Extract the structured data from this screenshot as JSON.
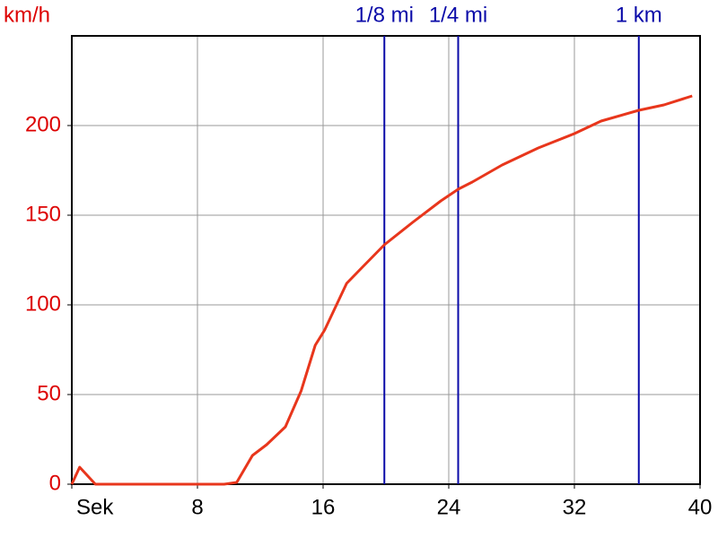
{
  "chart_data": {
    "type": "line",
    "y_label": "km/h",
    "xlim": [
      0,
      40
    ],
    "ylim": [
      0,
      250
    ],
    "xticks": [
      {
        "value": 0,
        "label": "Sek"
      },
      8,
      16,
      24,
      32,
      40
    ],
    "yticks": [
      0,
      50,
      100,
      150,
      200
    ],
    "grid": true,
    "x": [
      0,
      0.5,
      1.5,
      9.7,
      10.5,
      11.5,
      12.4,
      13.6,
      14.6,
      15.5,
      16.1,
      17.5,
      18.5,
      19.9,
      21.7,
      23.5,
      24.6,
      25.5,
      27.4,
      29.7,
      32,
      33.7,
      36.1,
      37.7,
      39.5
    ],
    "series": [
      {
        "color": "#e8361c",
        "values": [
          0,
          9.5,
          0,
          0,
          1,
          16,
          22,
          32,
          52,
          77.5,
          86,
          112,
          121,
          133.5,
          146,
          158,
          164.5,
          168.5,
          178,
          187.5,
          195.5,
          202.5,
          208.5,
          211.5,
          216.5
        ]
      }
    ],
    "markers": [
      {
        "x": 19.9,
        "label": "1/8 mi"
      },
      {
        "x": 24.6,
        "label": "1/4 mi"
      },
      {
        "x": 36.1,
        "label": "1 km"
      }
    ],
    "marker_color": "#0a0aa8",
    "axis_label_color": "#dd0000"
  }
}
